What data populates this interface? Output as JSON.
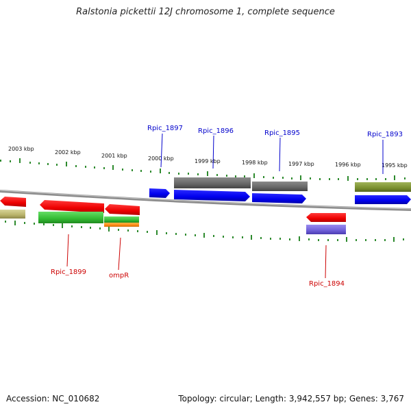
{
  "title": "Ralstonia pickettii 12J chromosome 1, complete sequence",
  "accession": "Accession: NC_010682",
  "topology": "Topology: circular; Length: 3,942,557 bp; Genes: 3,767",
  "colors": {
    "forward_label": "#0000cc",
    "reverse_label": "#cc0000",
    "tick": "#2d8a2d",
    "backbone": "#8c8c8c"
  },
  "ruler_labels": [
    "2003 kbp",
    "2002 kbp",
    "2001 kbp",
    "2000 kbp",
    "1999 kbp",
    "1998 kbp",
    "1997 kbp",
    "1996 kbp",
    "1995 kbp"
  ],
  "gene_labels_forward": [
    "Rpic_1897",
    "Rpic_1896",
    "Rpic_1895",
    "Rpic_1893"
  ],
  "gene_labels_reverse": [
    "Rpic_1899",
    "ompR",
    "Rpic_1894"
  ]
}
